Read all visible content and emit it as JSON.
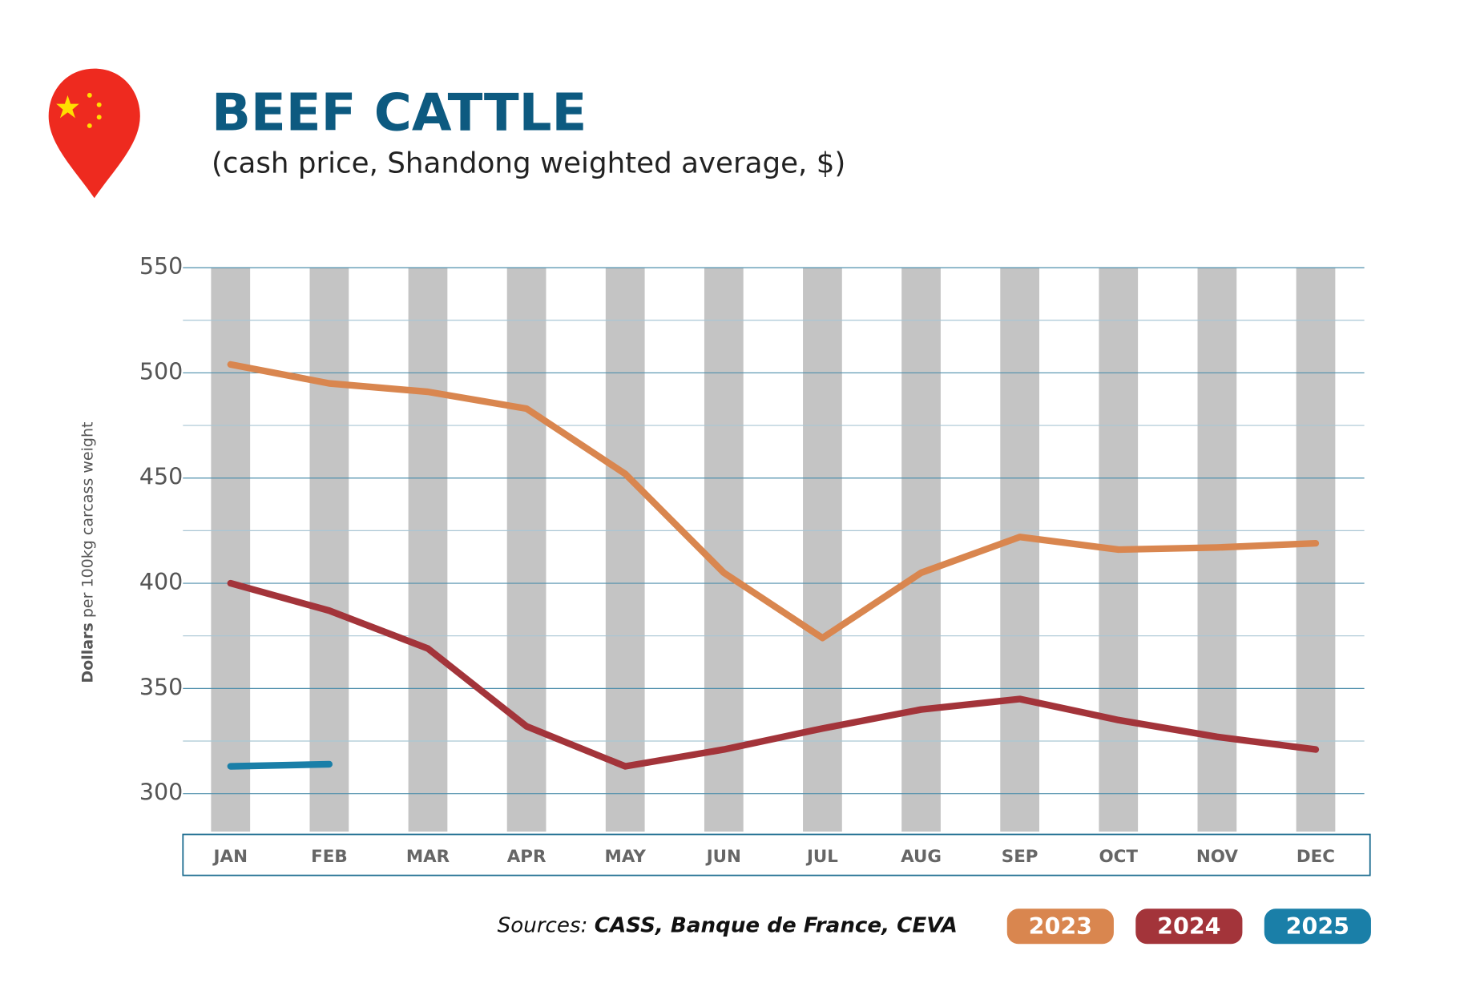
{
  "chart_data": {
    "type": "line",
    "title": "BEEF CATTLE",
    "subtitle": "(cash price, Shandong weighted average, $)",
    "ylabel_bold": "Dollars",
    "ylabel": "per 100kg carcass weight",
    "source_label": "Sources:",
    "source": "CASS, Banque de France, CEVA",
    "categories": [
      "JAN",
      "FEB",
      "MAR",
      "APR",
      "MAY",
      "JUN",
      "JUL",
      "AUG",
      "SEP",
      "OCT",
      "NOV",
      "DEC"
    ],
    "series": [
      {
        "name": "2023",
        "color": "#d9864f",
        "values": [
          504,
          495,
          491,
          483,
          452,
          405,
          374,
          405,
          422,
          416,
          417,
          419
        ]
      },
      {
        "name": "2024",
        "color": "#a3343a",
        "values": [
          400,
          387,
          369,
          332,
          313,
          321,
          331,
          340,
          345,
          335,
          327,
          321
        ]
      },
      {
        "name": "2025",
        "color": "#1a7fa8",
        "values": [
          313,
          314,
          null,
          null,
          null,
          null,
          null,
          null,
          null,
          null,
          null,
          null
        ]
      }
    ],
    "ylim": [
      282,
      550
    ],
    "yticks": [
      300,
      350,
      400,
      450,
      500,
      550
    ],
    "minor_gridlines": [
      325,
      375,
      425,
      475,
      525
    ],
    "grid": true
  }
}
